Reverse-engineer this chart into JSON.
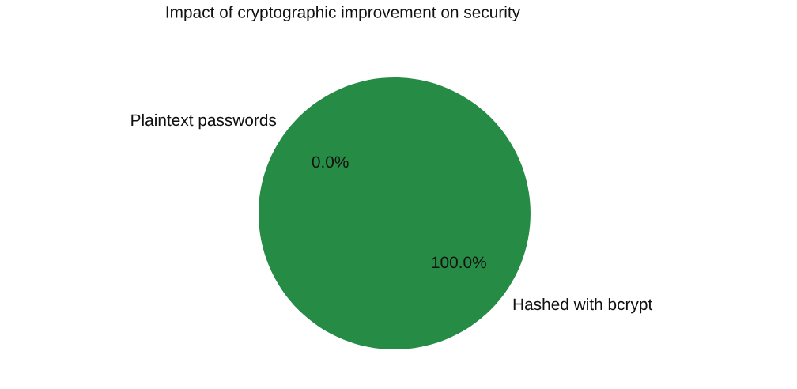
{
  "chart_data": {
    "type": "pie",
    "title": "Impact of cryptographic improvement on security",
    "categories": [
      "Plaintext passwords",
      "Hashed with bcrypt"
    ],
    "values": [
      0,
      100
    ],
    "colors": [
      "#268c45",
      "#268c45"
    ],
    "value_labels": [
      "0.0%",
      "100.0%"
    ]
  }
}
